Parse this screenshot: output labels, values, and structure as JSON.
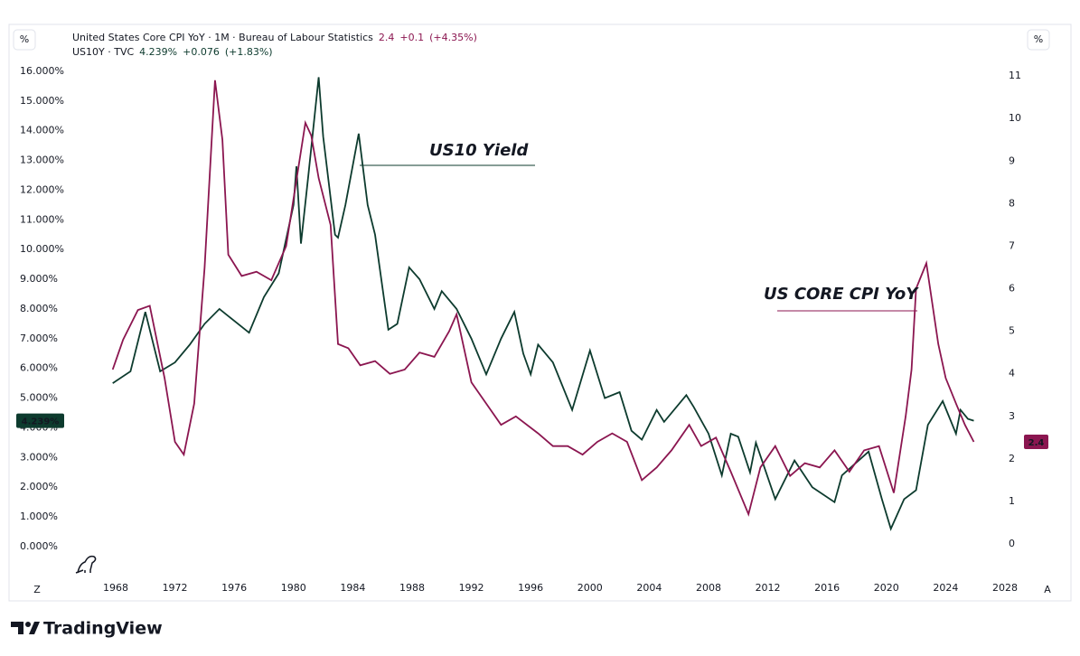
{
  "chart_data": {
    "type": "line",
    "xlim": [
      1964.77,
      2029.1
    ],
    "xticks": [
      1968,
      1972,
      1976,
      1980,
      1984,
      1988,
      1992,
      1996,
      2000,
      2004,
      2008,
      2012,
      2016,
      2020,
      2024,
      2028
    ],
    "ylim": [
      -1.065,
      16.27
    ],
    "yticks": [
      {
        "value": 0,
        "label": "0.000%"
      },
      {
        "value": 1,
        "label": "1.000%"
      },
      {
        "value": 2,
        "label": "2.000%"
      },
      {
        "value": 3,
        "label": "3.000%"
      },
      {
        "value": 4,
        "label": "4.000%"
      },
      {
        "value": 5,
        "label": "5.000%"
      },
      {
        "value": 6,
        "label": "6.000%"
      },
      {
        "value": 7,
        "label": "7.000%"
      },
      {
        "value": 8,
        "label": "8.000%"
      },
      {
        "value": 9,
        "label": "9.000%"
      },
      {
        "value": 10,
        "label": "10.000%"
      },
      {
        "value": 11,
        "label": "11.000%"
      },
      {
        "value": 12,
        "label": "12.000%"
      },
      {
        "value": 13,
        "label": "13.000%"
      },
      {
        "value": 14,
        "label": "14.000%"
      },
      {
        "value": 15,
        "label": "15.000%"
      },
      {
        "value": 16,
        "label": "16.000%"
      }
    ],
    "y2lim": [
      -0.807,
      11.3
    ],
    "y2ticks": [
      0,
      1,
      2,
      3,
      4,
      5,
      6,
      7,
      8,
      9,
      10,
      11
    ],
    "y_unit": "%",
    "y2_unit": "%",
    "series": [
      {
        "name": "US10Y · TVC",
        "color": "#0d3b2e",
        "axis": "y",
        "last_label": "4.239%",
        "change": "+0.076",
        "change_pct": "(+1.83%)",
        "x": [
          1967.8,
          1969,
          1970,
          1971,
          1972,
          1973,
          1974,
          1975,
          1976,
          1977,
          1978,
          1979,
          1980,
          1980.2,
          1980.5,
          1981,
          1981.7,
          1982,
          1982.8,
          1983,
          1983.5,
          1984.4,
          1985,
          1985.5,
          1986.4,
          1987,
          1987.8,
          1988.5,
          1989.5,
          1990,
          1991,
          1992,
          1993,
          1994,
          1994.9,
          1995.5,
          1996,
          1996.5,
          1997.5,
          1998.8,
          2000,
          2001,
          2002,
          2002.8,
          2003.5,
          2004.5,
          2005,
          2006.5,
          2007,
          2008,
          2008.9,
          2009.5,
          2010,
          2010.8,
          2011.2,
          2012.5,
          2013.8,
          2015,
          2016.5,
          2017,
          2018.8,
          2019.7,
          2020.3,
          2021.2,
          2022,
          2022.8,
          2023.8,
          2024.7,
          2025,
          2025.5,
          2025.9
        ],
        "values": [
          5.5,
          5.9,
          7.9,
          5.9,
          6.2,
          6.8,
          7.5,
          8.0,
          7.6,
          7.2,
          8.4,
          9.2,
          11.5,
          12.8,
          10.2,
          12.5,
          15.8,
          13.8,
          10.5,
          10.4,
          11.5,
          13.9,
          11.5,
          10.5,
          7.3,
          7.5,
          9.4,
          9.0,
          8.0,
          8.6,
          8.0,
          7.0,
          5.8,
          7.0,
          7.9,
          6.5,
          5.8,
          6.8,
          6.2,
          4.6,
          6.6,
          5.0,
          5.2,
          3.9,
          3.6,
          4.6,
          4.2,
          5.1,
          4.7,
          3.8,
          2.4,
          3.8,
          3.7,
          2.5,
          3.5,
          1.6,
          2.9,
          2.0,
          1.5,
          2.4,
          3.2,
          1.6,
          0.6,
          1.6,
          1.9,
          4.1,
          4.9,
          3.8,
          4.6,
          4.3,
          4.239
        ]
      },
      {
        "name": "United States Core CPI YoY · 1M · Bureau of Labour Statistics",
        "color": "#8b1650",
        "axis": "y2",
        "last_label": "2.4",
        "change": "+0.1",
        "change_pct": "(+4.35%)",
        "x": [
          1967.8,
          1968.5,
          1969.5,
          1970.3,
          1971.3,
          1972,
          1972.6,
          1973.3,
          1974,
          1974.7,
          1975.2,
          1975.6,
          1976.5,
          1977.5,
          1978.5,
          1979.5,
          1980.8,
          1981.2,
          1981.7,
          1982.5,
          1983,
          1983.7,
          1984.5,
          1985.5,
          1986.5,
          1987.5,
          1988.5,
          1989.5,
          1990.5,
          1991,
          1992,
          1993,
          1994,
          1995,
          1996.5,
          1997.5,
          1998.5,
          1999.5,
          2000.5,
          2001.5,
          2002.5,
          2003.5,
          2004.5,
          2005.5,
          2006.7,
          2007.5,
          2008.5,
          2009.5,
          2010.7,
          2011.5,
          2012.5,
          2013.5,
          2014.5,
          2015.5,
          2016.5,
          2017.5,
          2018.5,
          2019.5,
          2020.5,
          2021.3,
          2021.7,
          2022,
          2022.7,
          2023.5,
          2024,
          2024.7,
          2025.3,
          2025.9
        ],
        "values": [
          4.1,
          4.8,
          5.5,
          5.6,
          3.9,
          2.4,
          2.1,
          3.3,
          6.5,
          10.9,
          9.5,
          6.8,
          6.3,
          6.4,
          6.2,
          7.0,
          9.9,
          9.6,
          8.6,
          7.5,
          4.7,
          4.6,
          4.2,
          4.3,
          4.0,
          4.1,
          4.5,
          4.4,
          5.0,
          5.4,
          3.8,
          3.3,
          2.8,
          3.0,
          2.6,
          2.3,
          2.3,
          2.1,
          2.4,
          2.6,
          2.4,
          1.5,
          1.8,
          2.2,
          2.8,
          2.3,
          2.5,
          1.7,
          0.7,
          1.8,
          2.3,
          1.6,
          1.9,
          1.8,
          2.2,
          1.7,
          2.2,
          2.3,
          1.2,
          3.0,
          4.1,
          6.0,
          6.6,
          4.7,
          3.9,
          3.3,
          2.8,
          2.4
        ]
      }
    ],
    "annotations": [
      {
        "text": "US10 Yield"
      },
      {
        "text": "US CORE CPI YoY"
      }
    ]
  },
  "ui": {
    "scale_left": "Z",
    "scale_right": "A",
    "brand": "TradingView"
  }
}
